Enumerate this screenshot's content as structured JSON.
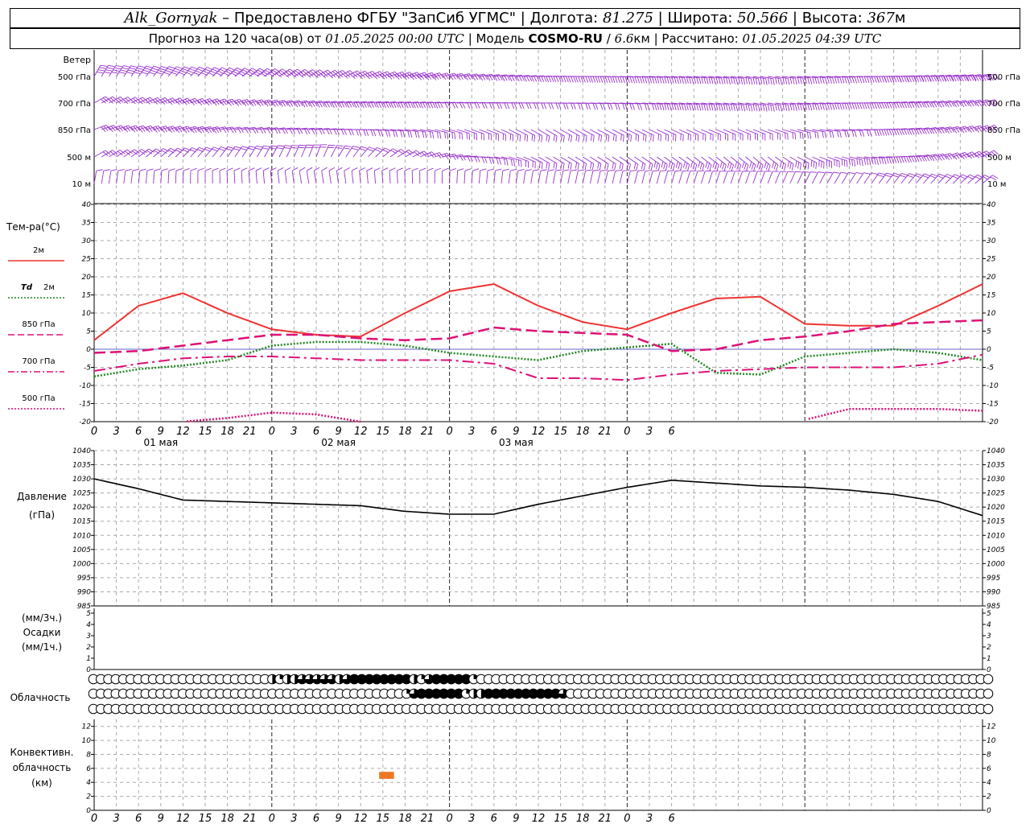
{
  "header": {
    "station": "Alk_Gornyak",
    "provided_by": "– Предоставлено ФГБУ \"ЗапСиб УГМС\"",
    "lon_label": "Долгота:",
    "lon": "81.275",
    "lat_label": "Широта:",
    "lat": "50.566",
    "alt_label": "Высота:",
    "alt": "367",
    "alt_unit": "м",
    "forecast_prefix": "Прогноз на 120 часа(ов) от",
    "forecast_from": "01.05.2025 00:00 UTC",
    "model_label": "Модель",
    "model": "COSMO-RU",
    "resolution": "6.6",
    "resolution_unit": "км",
    "computed_label": "Рассчитано:",
    "computed": "01.05.2025 04:39 UTC"
  },
  "x_axis": {
    "ticks": [
      "0",
      "3",
      "6",
      "9",
      "12",
      "15",
      "18",
      "21",
      "0",
      "3",
      "6",
      "9",
      "12",
      "15",
      "18",
      "21",
      "0",
      "3",
      "6",
      "9",
      "12",
      "15",
      "18",
      "21",
      "0",
      "3",
      "6"
    ],
    "days": [
      "01 мая",
      "02 мая",
      "03 мая"
    ]
  },
  "panels": {
    "wind": {
      "title": "Ветер",
      "levels": [
        "500 гПа",
        "700 гПа",
        "850 гПа",
        "500 м",
        "10 м"
      ],
      "color": "#9933cc"
    },
    "temperature": {
      "title": "Тем-ра(°С)",
      "legend": [
        {
          "label": "2м",
          "color": "#ee3333",
          "style": "solid"
        },
        {
          "label_main": "Td",
          "label_sub": "2м",
          "color": "#228822",
          "style": "dotted"
        },
        {
          "label": "850 гПа",
          "color": "#dd1177",
          "style": "dashed"
        },
        {
          "label": "700 гПа",
          "color": "#dd1177",
          "style": "dashdot"
        },
        {
          "label": "500 гПа",
          "color": "#dd1177",
          "style": "dotted"
        }
      ]
    },
    "pressure": {
      "title": "Давление",
      "unit": "(гПа)"
    },
    "precip": {
      "unit_top": "(мм/3ч.)",
      "title": "Осадки",
      "unit_bottom": "(мм/1ч.)"
    },
    "cloud": {
      "title": "Облачность"
    },
    "convective": {
      "title_1": "Конвективн.",
      "title_2": "облачность",
      "unit": "(км)",
      "color": "#ee7722"
    }
  },
  "chart_data": [
    {
      "type": "line",
      "title": "",
      "xlabel": "",
      "ylabel": "Тем-ра(°С)",
      "ylim": [
        -20,
        40
      ],
      "x_hours": [
        0,
        6,
        12,
        18,
        24,
        30,
        36,
        42,
        48,
        54,
        60,
        66,
        72,
        78,
        84,
        90,
        96,
        102,
        108,
        114,
        120
      ],
      "series": [
        {
          "name": "2м",
          "values": [
            2.5,
            12,
            15.5,
            10,
            5.5,
            4,
            3.5,
            10,
            16,
            18,
            12,
            7.5,
            5.5,
            10,
            14,
            14.5,
            7,
            6.5,
            6.5,
            12,
            18
          ]
        },
        {
          "name": "Td 2м",
          "values": [
            -7.5,
            -5.5,
            -4.5,
            -3,
            1,
            2,
            2,
            1,
            -1,
            -2,
            -3,
            -0.5,
            0.5,
            1.5,
            -6.5,
            -7,
            -2,
            -1,
            0,
            -1,
            -3
          ]
        },
        {
          "name": "850 гПа",
          "values": [
            -1,
            -0.5,
            1,
            2.5,
            4,
            4,
            3,
            2.5,
            3,
            6,
            5,
            4.5,
            4,
            -0.5,
            0,
            2.5,
            3.5,
            5,
            7,
            7.5,
            8
          ]
        },
        {
          "name": "700 гПа",
          "values": [
            -6,
            -4,
            -2.5,
            -2,
            -2,
            -2.5,
            -3,
            -3,
            -3,
            -4,
            -8,
            -8,
            -8.5,
            -7,
            -6,
            -5.5,
            -5,
            -5,
            -5,
            -4,
            -1.5
          ]
        },
        {
          "name": "500 гПа",
          "values": [
            null,
            null,
            -20,
            -19,
            -17.5,
            -18,
            -20,
            null,
            null,
            null,
            null,
            null,
            null,
            null,
            null,
            null,
            -19.5,
            -16.5,
            -16.5,
            -16.5,
            -17
          ]
        }
      ],
      "grid": true
    },
    {
      "type": "line",
      "title": "",
      "ylabel": "Давление (гПа)",
      "ylim": [
        985,
        1040
      ],
      "x_hours": [
        0,
        6,
        12,
        18,
        24,
        30,
        36,
        42,
        48,
        54,
        60,
        66,
        72,
        78,
        84,
        90,
        96,
        102,
        108,
        114,
        120
      ],
      "series": [
        {
          "name": "",
          "values": [
            1030,
            1026.5,
            1022.5,
            1022,
            1021.5,
            1021,
            1020.5,
            1018.5,
            1017.5,
            1017.5,
            1021,
            1024,
            1027,
            1029.5,
            1028.5,
            1027.5,
            1027,
            1026,
            1024.5,
            1022,
            1017
          ]
        }
      ],
      "grid": true
    },
    {
      "type": "bar",
      "ylabel": "Осадки",
      "ylim": [
        0,
        5
      ],
      "values": []
    },
    {
      "type": "heatmap",
      "ylabel": "Облачность",
      "rows": [
        "0000000000000000000000002122333332344444444213444441000000000000000000000000000000000000000000000000000000000000000000000",
        "0000000000000000000000000000000000000000001344444412244444444443000000000000000000000000000000000000000000000000000000000",
        "0000000000000000000000000000000000000000000000000000000000000000000000000000000000000000000000000000000000000000000000000"
      ]
    },
    {
      "type": "bar",
      "ylabel": "Конвективн. облачность (км)",
      "ylim": [
        0,
        13
      ],
      "bars": [
        {
          "x_start": 38.5,
          "x_end": 40.5,
          "y_bottom": 4.5,
          "y_top": 5.5
        }
      ]
    }
  ]
}
